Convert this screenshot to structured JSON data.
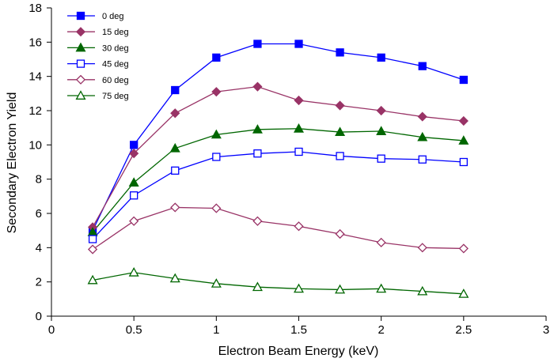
{
  "chart_data": {
    "type": "line",
    "title": "",
    "xlabel": "Electron Beam Energy (keV)",
    "ylabel": "Secondary Electron Yield",
    "xlim": [
      0,
      3
    ],
    "ylim": [
      0,
      18
    ],
    "xticks": [
      0,
      0.5,
      1,
      1.5,
      2,
      2.5,
      3
    ],
    "xtick_labels": [
      "0",
      "0.5",
      "1",
      "1.5",
      "2",
      "2.5",
      "3"
    ],
    "yticks": [
      0,
      2,
      4,
      6,
      8,
      10,
      12,
      14,
      16,
      18
    ],
    "ytick_labels": [
      "0",
      "2",
      "4",
      "6",
      "8",
      "10",
      "12",
      "14",
      "16",
      "18"
    ],
    "grid": false,
    "legend_position": "top-left",
    "x": [
      0.25,
      0.5,
      0.75,
      1.0,
      1.25,
      1.5,
      1.75,
      2.0,
      2.25,
      2.5
    ],
    "series": [
      {
        "name": "0 deg",
        "color": "#0000ff",
        "marker": "square",
        "filled": true,
        "values": [
          5.0,
          10.0,
          13.2,
          15.1,
          15.9,
          15.9,
          15.4,
          15.1,
          14.6,
          13.8
        ]
      },
      {
        "name": "15 deg",
        "color": "#993366",
        "marker": "diamond",
        "filled": true,
        "values": [
          5.2,
          9.5,
          11.85,
          13.1,
          13.4,
          12.6,
          12.3,
          12.0,
          11.65,
          11.4
        ]
      },
      {
        "name": "30 deg",
        "color": "#006600",
        "marker": "triangle",
        "filled": true,
        "values": [
          4.9,
          7.8,
          9.8,
          10.6,
          10.9,
          10.95,
          10.75,
          10.8,
          10.45,
          10.25
        ]
      },
      {
        "name": "45 deg",
        "color": "#0000ff",
        "marker": "square",
        "filled": false,
        "values": [
          4.5,
          7.05,
          8.5,
          9.3,
          9.5,
          9.6,
          9.35,
          9.2,
          9.15,
          9.0
        ]
      },
      {
        "name": "60 deg",
        "color": "#993366",
        "marker": "diamond",
        "filled": false,
        "values": [
          3.9,
          5.55,
          6.35,
          6.3,
          5.55,
          5.25,
          4.8,
          4.3,
          4.0,
          3.95
        ]
      },
      {
        "name": "75 deg",
        "color": "#006600",
        "marker": "triangle",
        "filled": false,
        "values": [
          2.1,
          2.55,
          2.2,
          1.9,
          1.7,
          1.6,
          1.55,
          1.6,
          1.45,
          1.3
        ]
      }
    ]
  }
}
